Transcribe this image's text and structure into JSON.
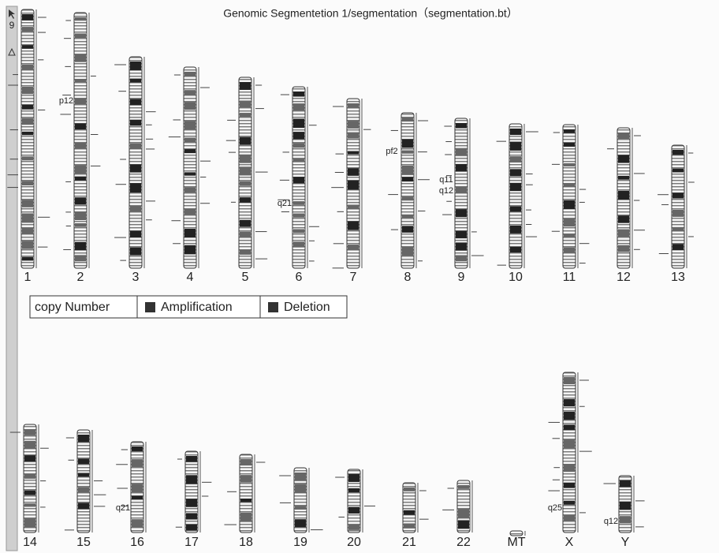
{
  "title": "Genomic Segmentetion 1/segmentation（segmentation.bt）",
  "chromosomes": [
    "1",
    "2",
    "3",
    "4",
    "5",
    "6",
    "7",
    "8",
    "9",
    "10",
    "11",
    "12",
    "13",
    "14",
    "15",
    "16",
    "17",
    "18",
    "19",
    "20",
    "21",
    "22",
    "MT",
    "X",
    "Y"
  ],
  "band_labels": [
    "p12",
    "q21",
    "pf2",
    "q11",
    "q12",
    "q21",
    "q25",
    "q12"
  ],
  "legend": {
    "title": "copy Number",
    "items": [
      "Amplification",
      "Deletion"
    ]
  }
}
